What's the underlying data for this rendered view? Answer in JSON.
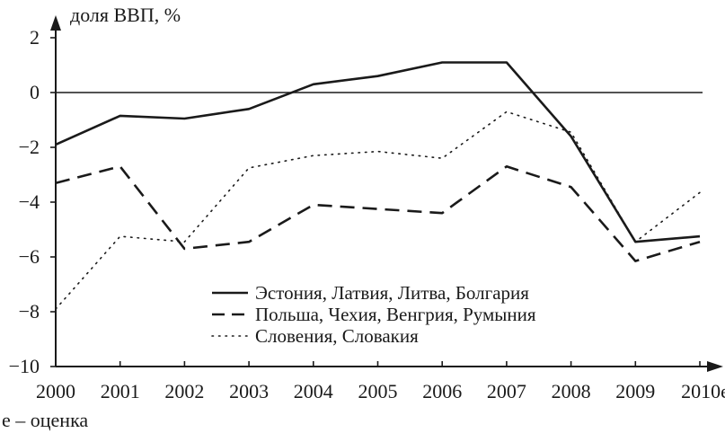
{
  "chart_data": {
    "type": "line",
    "title": "",
    "ylabel": "доля ВВП, %",
    "xlabel": "",
    "note": "e – оценка",
    "categories": [
      "2000",
      "2001",
      "2002",
      "2003",
      "2004",
      "2005",
      "2006",
      "2007",
      "2008",
      "2009",
      "2010e"
    ],
    "yticks": [
      "2",
      "0",
      "−2",
      "−4",
      "−6",
      "−8",
      "−10"
    ],
    "ylim": [
      -10,
      2
    ],
    "zero_line": true,
    "grid": false,
    "legend_position": "bottom-center",
    "series": [
      {
        "name": "Эстония, Латвия, Литва, Болгария",
        "style": "solid",
        "values": [
          -1.9,
          -0.85,
          -0.95,
          -0.6,
          0.3,
          0.6,
          1.1,
          1.1,
          -1.6,
          -5.45,
          -5.25
        ]
      },
      {
        "name": "Польша, Чехия, Венгрия, Румыния",
        "style": "dashed",
        "values": [
          -3.3,
          -2.7,
          -5.7,
          -5.45,
          -4.1,
          -4.25,
          -4.4,
          -2.7,
          -3.45,
          -6.15,
          -5.45
        ]
      },
      {
        "name": "Словения, Словакия",
        "style": "dotted",
        "values": [
          -7.9,
          -5.25,
          -5.45,
          -2.75,
          -2.3,
          -2.15,
          -2.4,
          -0.7,
          -1.45,
          -5.45,
          -3.65
        ]
      }
    ]
  }
}
